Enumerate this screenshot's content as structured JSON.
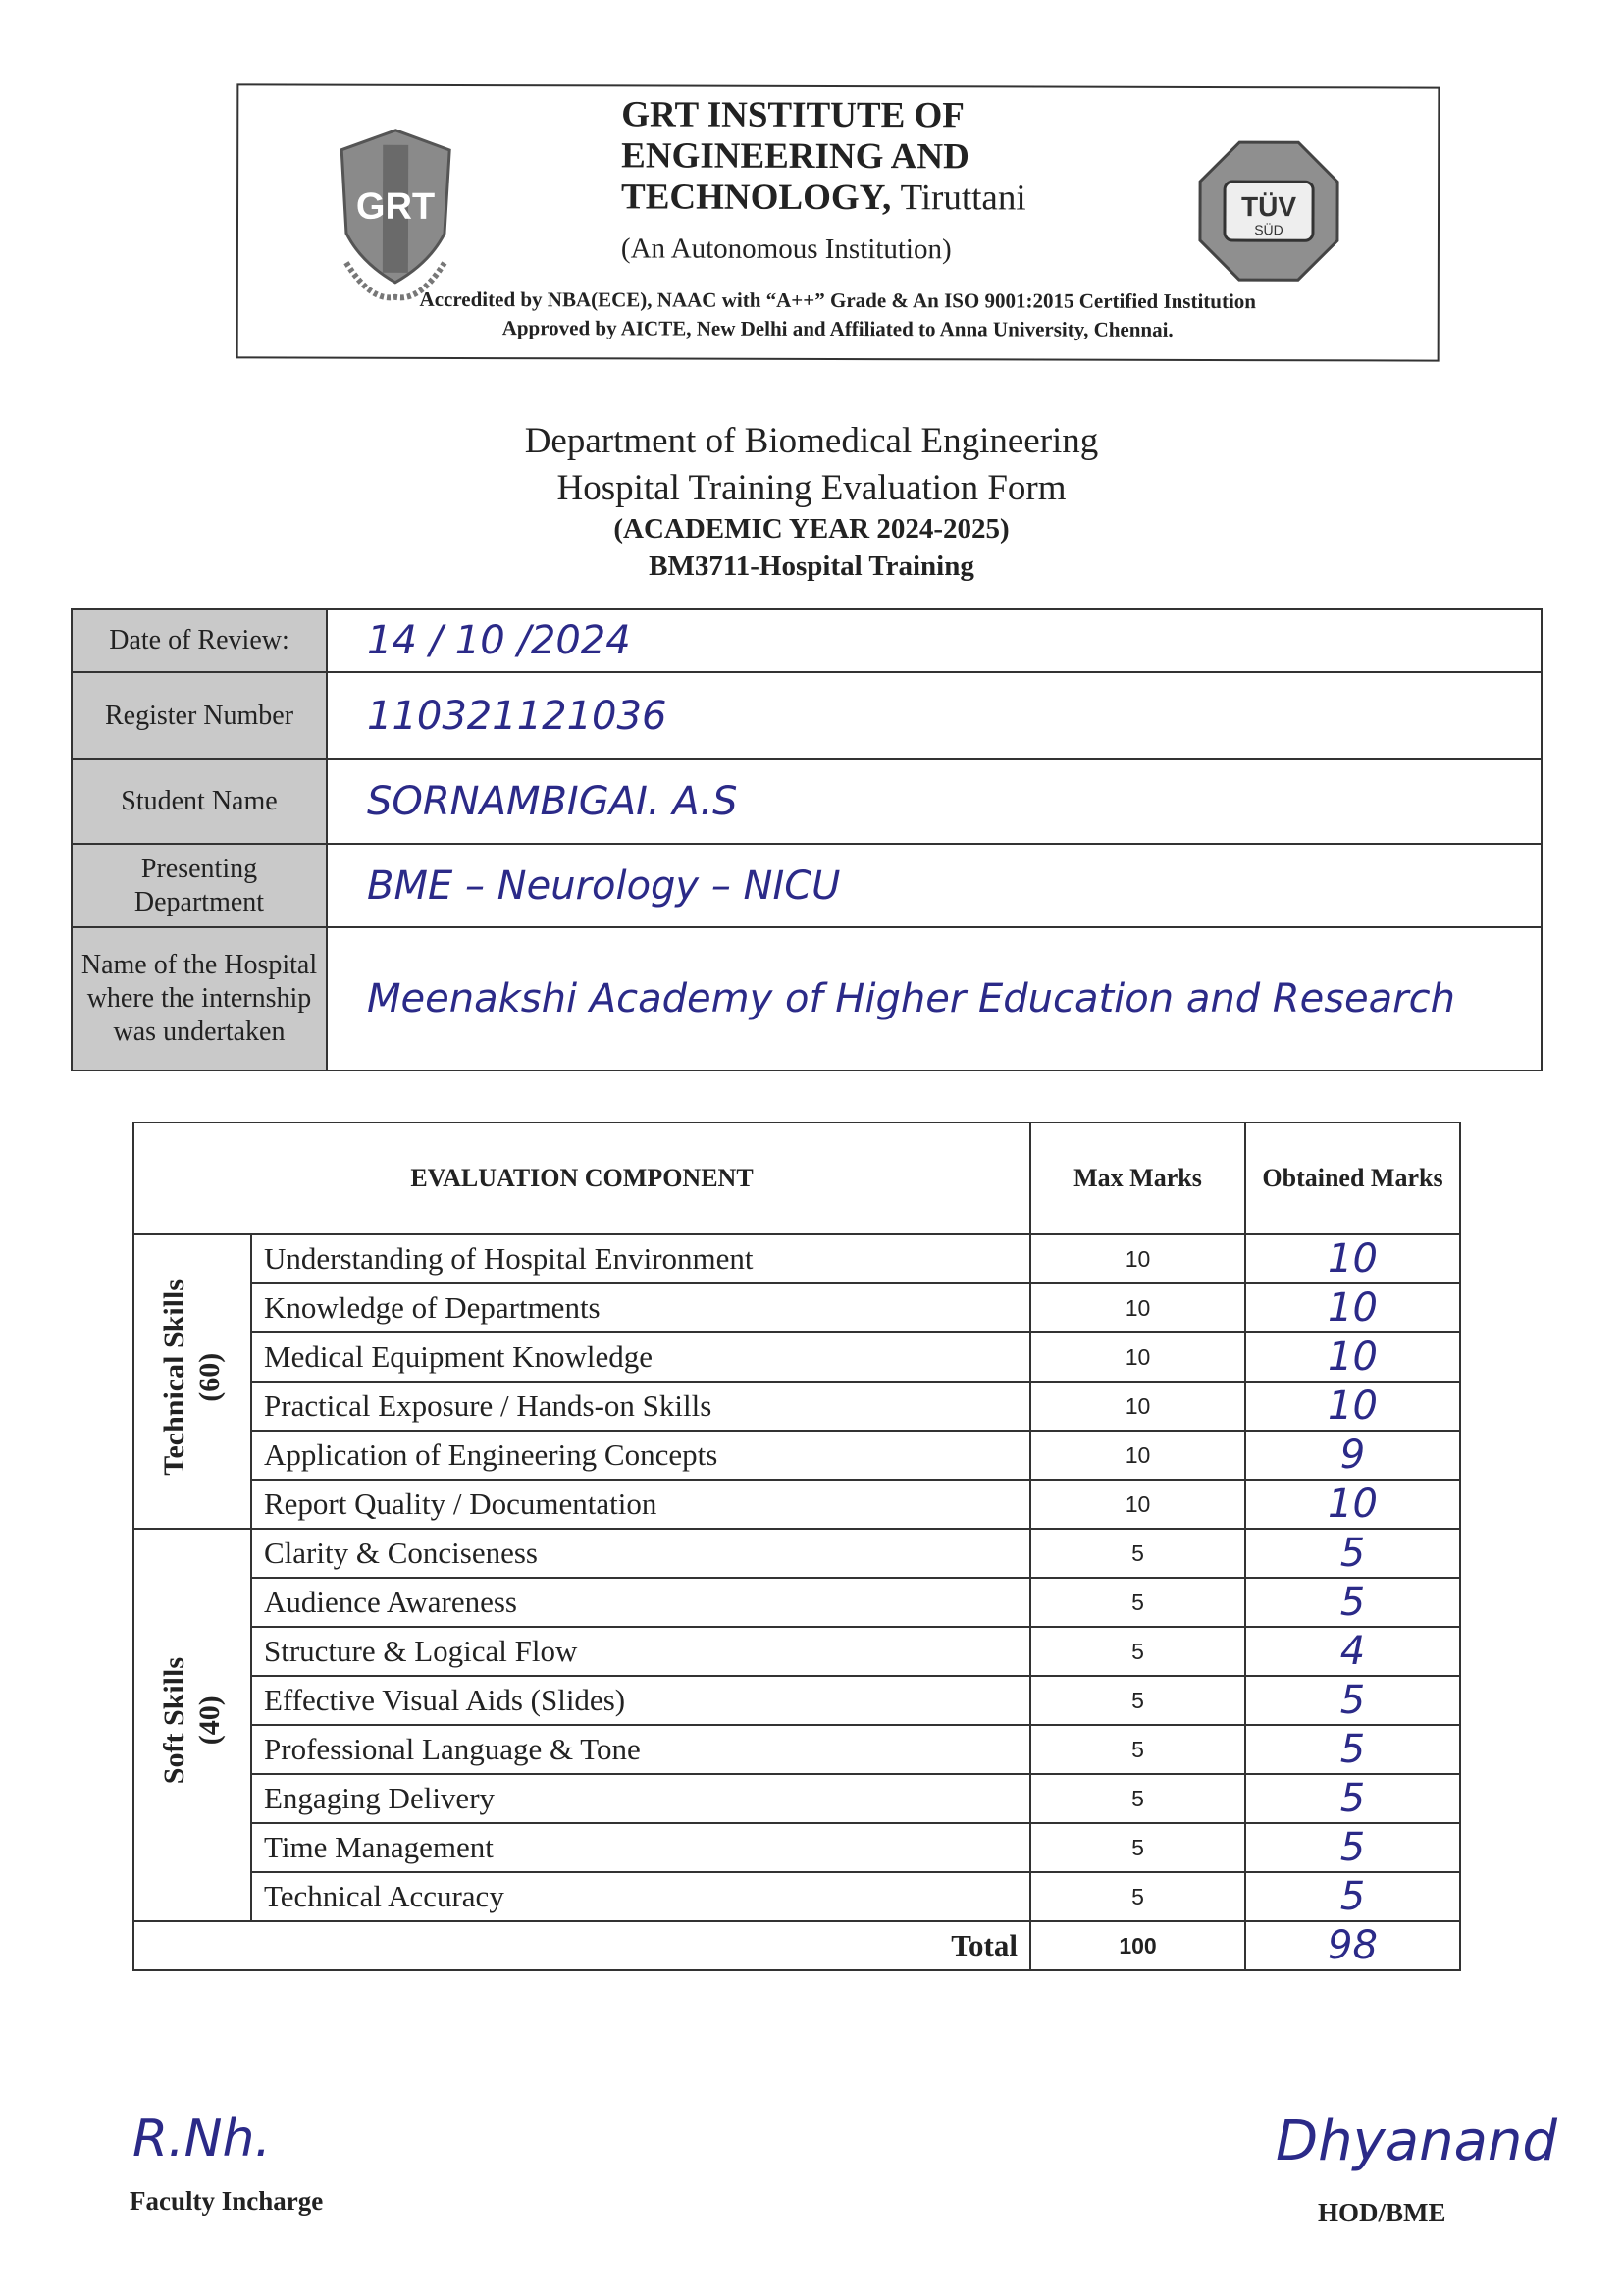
{
  "header": {
    "institute_line1": "GRT INSTITUTE OF",
    "institute_line2": "ENGINEERING AND",
    "institute_line3": "TECHNOLOGY,",
    "town": "Tiruttani",
    "autonomous": "(An Autonomous Institution)",
    "accreditation": "Accredited by NBA(ECE), NAAC with “A++” Grade & An ISO 9001:2015 Certified Institution",
    "approval": "Approved by AICTE, New Delhi and Affiliated to Anna University, Chennai.",
    "logo_left_text": "GRT",
    "logo_right_text": "TÜV SÜD ISO 9001"
  },
  "titles": {
    "department": "Department of Biomedical Engineering",
    "form": "Hospital Training Evaluation Form",
    "year": "(ACADEMIC YEAR 2024-2025)",
    "course": "BM3711-Hospital Training"
  },
  "info": [
    {
      "label": "Date of Review:",
      "value": "14 / 10 /2024"
    },
    {
      "label": "Register Number",
      "value": "110321121036"
    },
    {
      "label": "Student Name",
      "value": "SORNAMBIGAI. A.S"
    },
    {
      "label": "Presenting Department",
      "value": "BME – Neurology – NICU"
    },
    {
      "label": "Name of the Hospital where the internship was undertaken",
      "value": "Meenakshi Academy of Higher Education and Research"
    }
  ],
  "evaluation": {
    "headers": {
      "component": "EVALUATION COMPONENT",
      "max": "Max Marks",
      "obtained": "Obtained Marks"
    },
    "groups": [
      {
        "name": "Technical Skills",
        "total": "(60)",
        "rows": [
          {
            "component": "Understanding of Hospital Environment",
            "max": "10",
            "obtained": "10"
          },
          {
            "component": "Knowledge of Departments",
            "max": "10",
            "obtained": "10"
          },
          {
            "component": "Medical Equipment Knowledge",
            "max": "10",
            "obtained": "10"
          },
          {
            "component": "Practical Exposure / Hands-on Skills",
            "max": "10",
            "obtained": "10"
          },
          {
            "component": "Application of Engineering Concepts",
            "max": "10",
            "obtained": "9"
          },
          {
            "component": "Report Quality / Documentation",
            "max": "10",
            "obtained": "10"
          }
        ]
      },
      {
        "name": "Soft Skills",
        "total": "(40)",
        "rows": [
          {
            "component": "Clarity & Conciseness",
            "max": "5",
            "obtained": "5"
          },
          {
            "component": "Audience Awareness",
            "max": "5",
            "obtained": "5"
          },
          {
            "component": "Structure & Logical Flow",
            "max": "5",
            "obtained": "4"
          },
          {
            "component": "Effective Visual Aids (Slides)",
            "max": "5",
            "obtained": "5"
          },
          {
            "component": "Professional Language & Tone",
            "max": "5",
            "obtained": "5"
          },
          {
            "component": "Engaging Delivery",
            "max": "5",
            "obtained": "5"
          },
          {
            "component": "Time Management",
            "max": "5",
            "obtained": "5"
          },
          {
            "component": "Technical Accuracy",
            "max": "5",
            "obtained": "5"
          }
        ]
      }
    ],
    "total": {
      "label": "Total",
      "max": "100",
      "obtained": "98"
    }
  },
  "signatures": {
    "faculty_label": "Faculty Incharge",
    "faculty_signature": "R.Nh.",
    "hod_label": "HOD/BME",
    "hod_signature": "Dhyanand"
  },
  "colors": {
    "ink": "#2b2a88",
    "label_bg": "#c9c9c9"
  }
}
